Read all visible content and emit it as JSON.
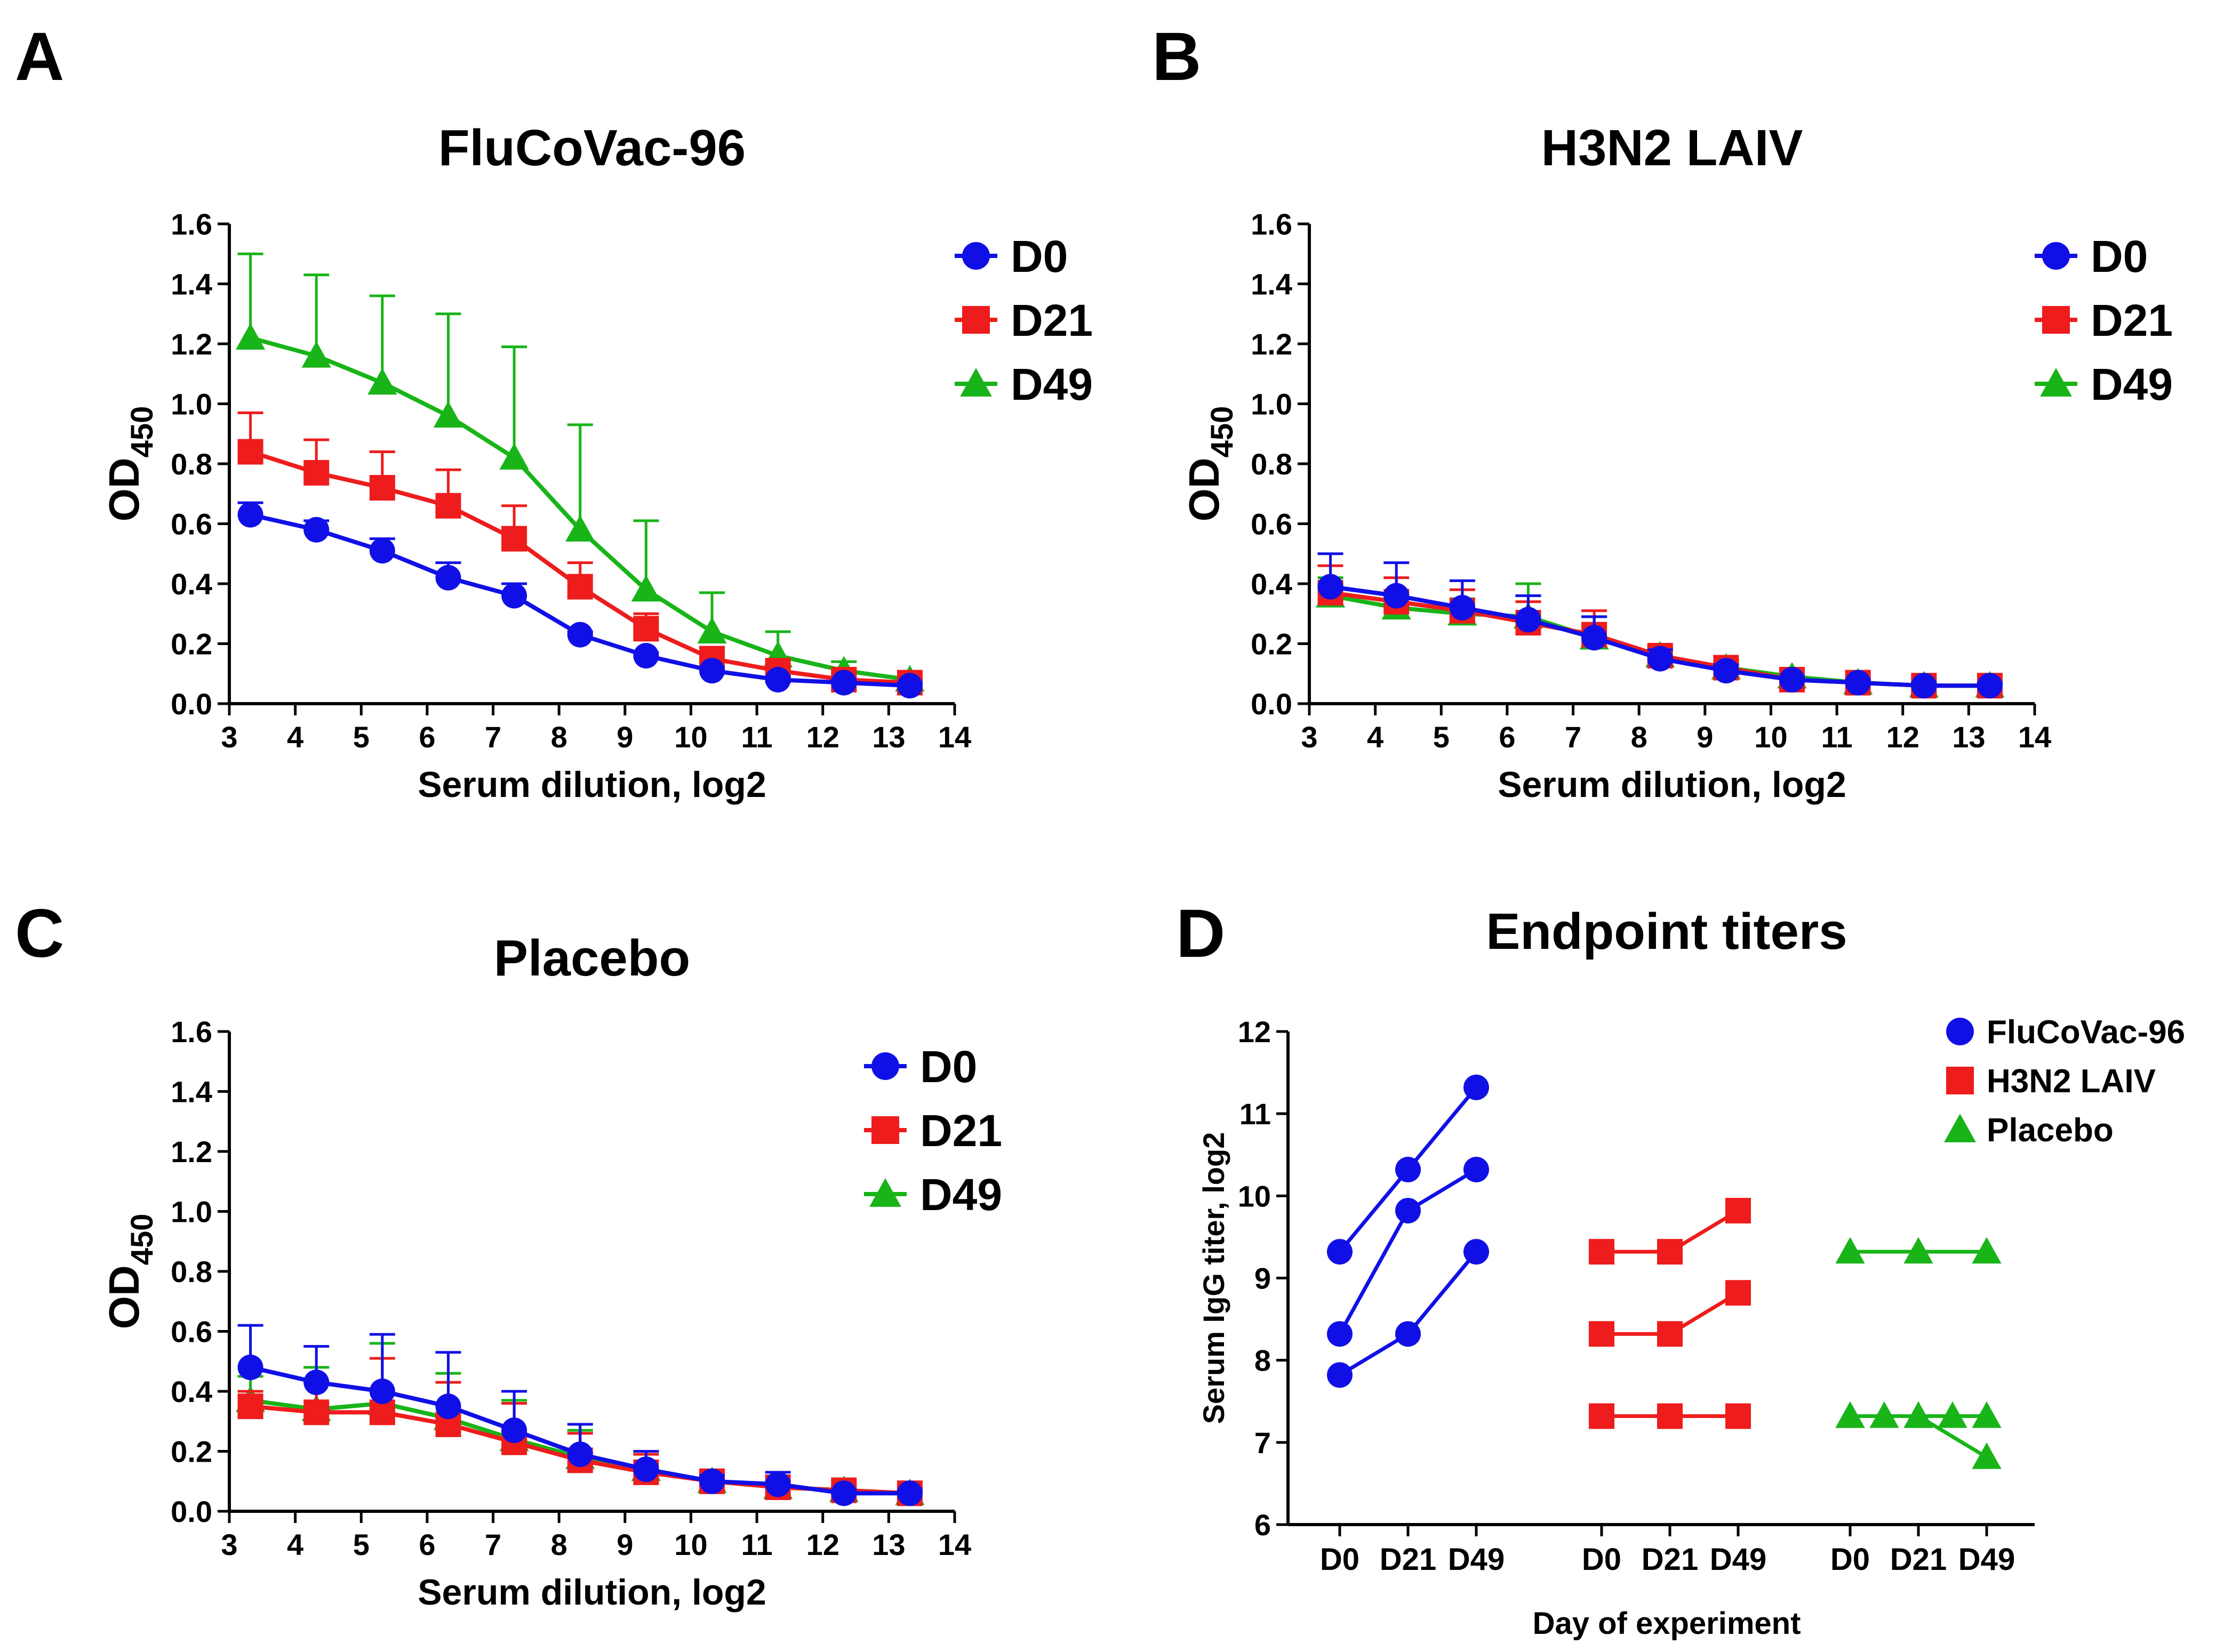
{
  "colors": {
    "D0": "#1010e6",
    "D21": "#ee1c1c",
    "D49": "#18b418",
    "axis": "#000000"
  },
  "chart_data": [
    {
      "panel": "A",
      "type": "line",
      "title": "FluCoVac-96",
      "xlabel": "Serum dilution, log2",
      "ylabel": "OD",
      "ylabel_sub": "450",
      "xlim": [
        3,
        14
      ],
      "ylim": [
        0,
        1.6
      ],
      "xticks": [
        "3",
        "4",
        "5",
        "6",
        "7",
        "8",
        "9",
        "10",
        "11",
        "12",
        "13",
        "14"
      ],
      "yticks": [
        "0.0",
        "0.2",
        "0.4",
        "0.6",
        "0.8",
        "1.0",
        "1.2",
        "1.4",
        "1.6"
      ],
      "x": [
        3.32,
        4.32,
        5.32,
        6.32,
        7.32,
        8.32,
        9.32,
        10.32,
        11.32,
        12.32,
        13.32
      ],
      "series": [
        {
          "name": "D0",
          "marker": "circle",
          "values": [
            0.63,
            0.58,
            0.51,
            0.42,
            0.36,
            0.23,
            0.16,
            0.11,
            0.08,
            0.07,
            0.06
          ],
          "err": [
            0.04,
            0.03,
            0.04,
            0.05,
            0.04,
            0.01,
            0.01,
            0.01,
            0.01,
            0.01,
            0.01
          ]
        },
        {
          "name": "D21",
          "marker": "square",
          "values": [
            0.84,
            0.77,
            0.72,
            0.66,
            0.55,
            0.39,
            0.25,
            0.15,
            0.11,
            0.08,
            0.07
          ],
          "err": [
            0.13,
            0.11,
            0.12,
            0.12,
            0.11,
            0.08,
            0.05,
            0.02,
            0.02,
            0.01,
            0.01
          ]
        },
        {
          "name": "D49",
          "marker": "triangle",
          "values": [
            1.22,
            1.16,
            1.07,
            0.96,
            0.82,
            0.58,
            0.38,
            0.24,
            0.16,
            0.11,
            0.08
          ],
          "err": [
            0.28,
            0.27,
            0.29,
            0.34,
            0.37,
            0.35,
            0.23,
            0.13,
            0.08,
            0.03,
            0.01
          ]
        }
      ],
      "legend": "top-right"
    },
    {
      "panel": "B",
      "type": "line",
      "title": "H3N2 LAIV",
      "xlabel": "Serum dilution, log2",
      "ylabel": "OD",
      "ylabel_sub": "450",
      "xlim": [
        3,
        14
      ],
      "ylim": [
        0,
        1.6
      ],
      "xticks": [
        "3",
        "4",
        "5",
        "6",
        "7",
        "8",
        "9",
        "10",
        "11",
        "12",
        "13",
        "14"
      ],
      "yticks": [
        "0.0",
        "0.2",
        "0.4",
        "0.6",
        "0.8",
        "1.0",
        "1.2",
        "1.4",
        "1.6"
      ],
      "x": [
        3.32,
        4.32,
        5.32,
        6.32,
        7.32,
        8.32,
        9.32,
        10.32,
        11.32,
        12.32,
        13.32
      ],
      "series": [
        {
          "name": "D0",
          "marker": "circle",
          "values": [
            0.39,
            0.36,
            0.32,
            0.28,
            0.22,
            0.15,
            0.11,
            0.08,
            0.07,
            0.06,
            0.06
          ],
          "err": [
            0.11,
            0.11,
            0.09,
            0.08,
            0.07,
            0.03,
            0.02,
            0.01,
            0.01,
            0.01,
            0.01
          ]
        },
        {
          "name": "D21",
          "marker": "square",
          "values": [
            0.37,
            0.34,
            0.31,
            0.27,
            0.23,
            0.16,
            0.12,
            0.08,
            0.07,
            0.06,
            0.06
          ],
          "err": [
            0.09,
            0.08,
            0.07,
            0.07,
            0.08,
            0.03,
            0.02,
            0.01,
            0.01,
            0.01,
            0.01
          ]
        },
        {
          "name": "D49",
          "marker": "triangle",
          "values": [
            0.36,
            0.32,
            0.3,
            0.29,
            0.22,
            0.16,
            0.12,
            0.09,
            0.07,
            0.06,
            0.06
          ],
          "err": [
            0.06,
            0.05,
            0.05,
            0.11,
            0.07,
            0.03,
            0.02,
            0.01,
            0.01,
            0.01,
            0.01
          ]
        }
      ],
      "legend": "top-right"
    },
    {
      "panel": "C",
      "type": "line",
      "title": "Placebo",
      "xlabel": "Serum dilution, log2",
      "ylabel": "OD",
      "ylabel_sub": "450",
      "xlim": [
        3,
        14
      ],
      "ylim": [
        0,
        1.6
      ],
      "xticks": [
        "3",
        "4",
        "5",
        "6",
        "7",
        "8",
        "9",
        "10",
        "11",
        "12",
        "13",
        "14"
      ],
      "yticks": [
        "0.0",
        "0.2",
        "0.4",
        "0.6",
        "0.8",
        "1.0",
        "1.2",
        "1.4",
        "1.6"
      ],
      "x": [
        3.32,
        4.32,
        5.32,
        6.32,
        7.32,
        8.32,
        9.32,
        10.32,
        11.32,
        12.32,
        13.32
      ],
      "series": [
        {
          "name": "D0",
          "marker": "circle",
          "values": [
            0.48,
            0.43,
            0.4,
            0.35,
            0.27,
            0.19,
            0.14,
            0.1,
            0.09,
            0.06,
            0.06
          ],
          "err": [
            0.14,
            0.12,
            0.19,
            0.18,
            0.13,
            0.1,
            0.06,
            0.02,
            0.04,
            0.01,
            0.01
          ]
        },
        {
          "name": "D21",
          "marker": "square",
          "values": [
            0.35,
            0.33,
            0.33,
            0.29,
            0.23,
            0.17,
            0.13,
            0.1,
            0.08,
            0.07,
            0.06
          ],
          "err": [
            0.05,
            0.1,
            0.18,
            0.14,
            0.13,
            0.09,
            0.06,
            0.02,
            0.02,
            0.01,
            0.01
          ]
        },
        {
          "name": "D49",
          "marker": "triangle",
          "values": [
            0.37,
            0.34,
            0.36,
            0.31,
            0.24,
            0.18,
            0.14,
            0.1,
            0.08,
            0.07,
            0.06
          ],
          "err": [
            0.08,
            0.14,
            0.2,
            0.15,
            0.13,
            0.09,
            0.06,
            0.02,
            0.02,
            0.01,
            0.01
          ]
        }
      ],
      "legend": "top-right"
    },
    {
      "panel": "D",
      "type": "scatter",
      "title": "Endpoint titers",
      "xlabel": "Day of experiment",
      "ylabel": "Serum IgG titer, log2",
      "ylim": [
        6,
        12
      ],
      "yticks": [
        "6",
        "7",
        "8",
        "9",
        "10",
        "11",
        "12"
      ],
      "xticklabels": [
        "D0",
        "D21",
        "D49",
        "D0",
        "D21",
        "D49",
        "D0",
        "D21",
        "D49"
      ],
      "legend": "top-right",
      "groups": [
        {
          "name": "FluCoVac-96",
          "marker": "circle",
          "color_key": "D0",
          "lines": [
            [
              9.32,
              10.32,
              11.32
            ],
            [
              8.32,
              9.82,
              10.32
            ],
            [
              7.82,
              8.32,
              9.32
            ]
          ]
        },
        {
          "name": "H3N2 LAIV",
          "marker": "square",
          "color_key": "D21",
          "lines": [
            [
              9.32,
              9.32,
              9.82
            ],
            [
              8.32,
              8.32,
              8.82
            ],
            [
              7.32,
              7.32,
              7.32
            ]
          ]
        },
        {
          "name": "Placebo",
          "marker": "triangle",
          "color_key": "D49",
          "lines": [
            [
              9.32,
              9.32,
              9.32
            ],
            [
              7.32,
              7.32,
              7.32
            ],
            [
              7.32,
              7.32,
              6.82
            ]
          ]
        }
      ]
    }
  ]
}
